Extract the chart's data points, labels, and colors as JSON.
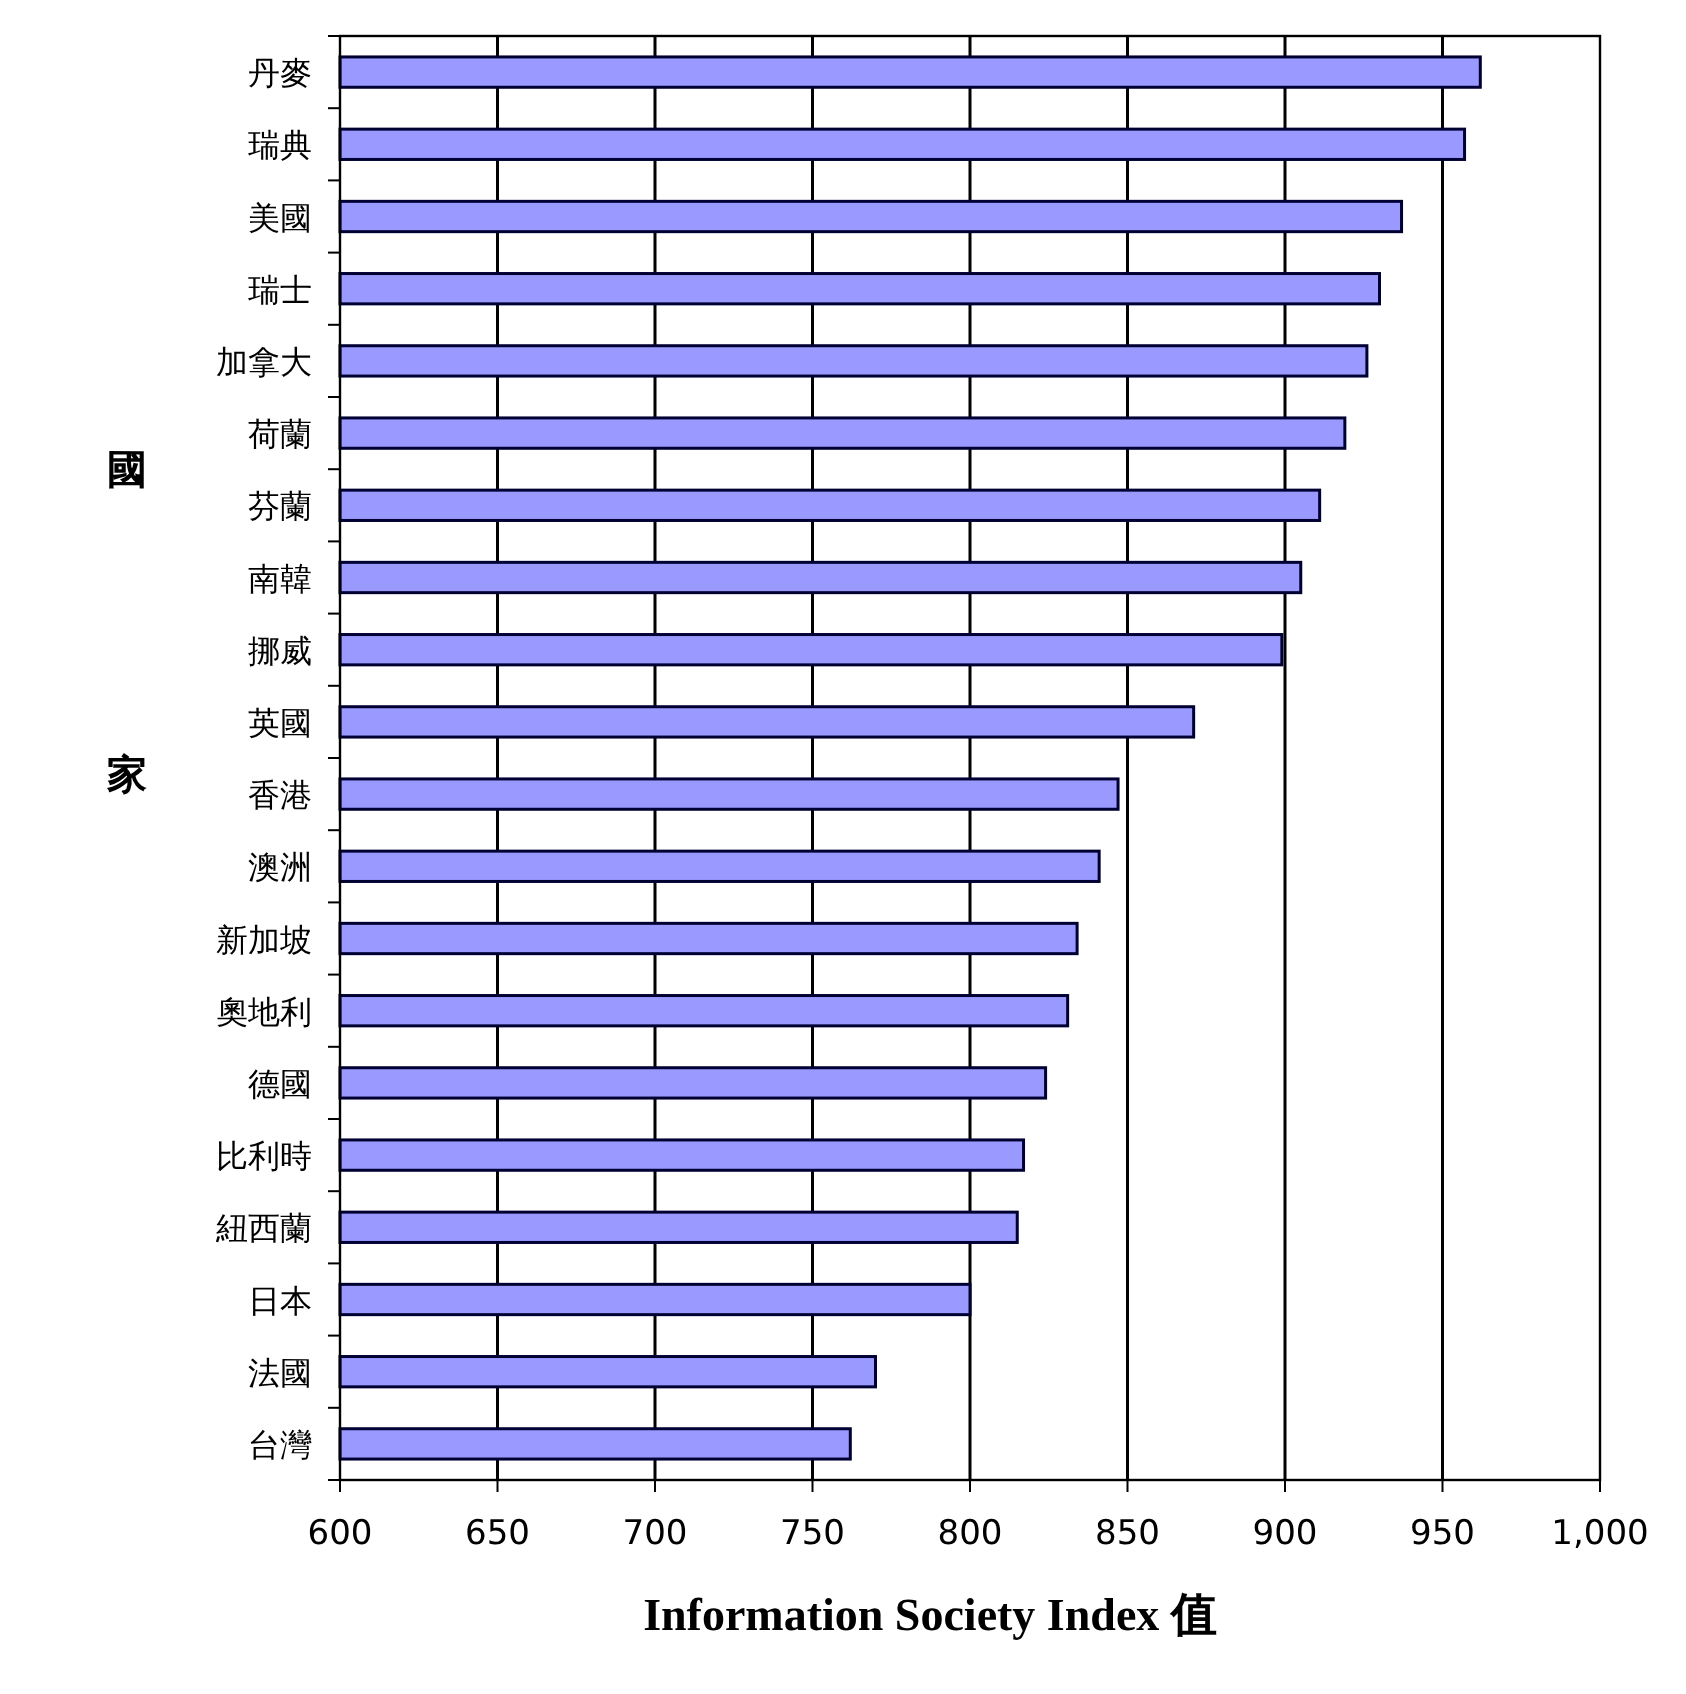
{
  "chart_data": {
    "type": "bar",
    "orientation": "horizontal",
    "xlabel": "Information Society Index 值",
    "ylabel": "國家",
    "categories": [
      "丹麥",
      "瑞典",
      "美國",
      "瑞士",
      "加拿大",
      "荷蘭",
      "芬蘭",
      "南韓",
      "挪威",
      "英國",
      "香港",
      "澳洲",
      "新加坡",
      "奧地利",
      "德國",
      "比利時",
      "紐西蘭",
      "日本",
      "法國",
      "台灣"
    ],
    "values": [
      962,
      957,
      937,
      930,
      926,
      919,
      911,
      905,
      899,
      871,
      847,
      841,
      834,
      831,
      824,
      817,
      815,
      800,
      770,
      762
    ],
    "color": "#9999ff",
    "xlim": [
      600,
      1000
    ],
    "xticks": [
      600,
      650,
      700,
      750,
      800,
      850,
      900,
      950,
      {
        "value": 1000,
        "label": "1,000"
      }
    ],
    "grid": "x"
  }
}
